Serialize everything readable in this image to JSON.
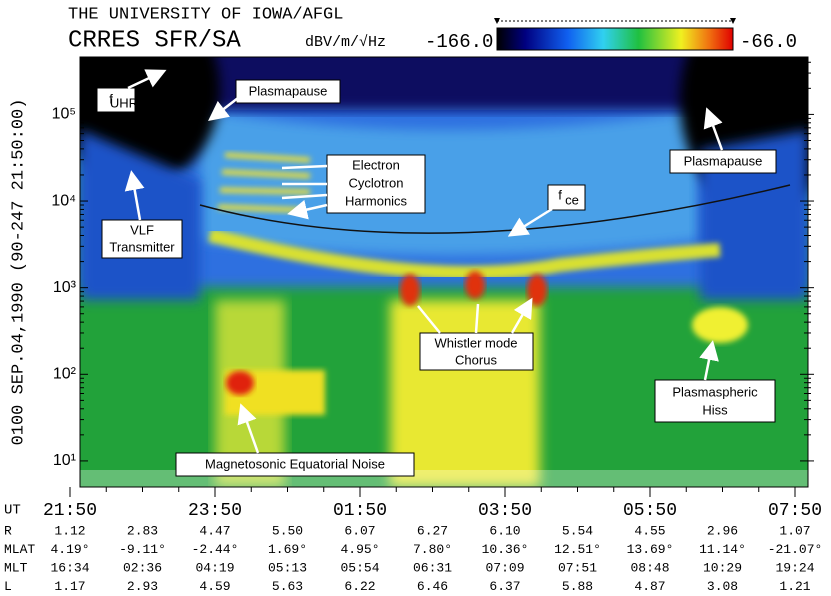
{
  "header": {
    "line1": "THE UNIVERSITY OF IOWA/AFGL",
    "line2": "CRRES SFR/SA",
    "units": "dBV/m/√Hz",
    "color_min": "-166.0",
    "color_max": "-66.0"
  },
  "chart_data": {
    "type": "spectrogram",
    "ylabel": "0100   SEP.04,1990   (90-247 21:50:00)",
    "xlabel": "UT",
    "log_y": true,
    "ylim": [
      5,
      460000
    ],
    "yticks": [
      {
        "value": 10,
        "label": "10¹"
      },
      {
        "value": 100,
        "label": "10²"
      },
      {
        "value": 1000,
        "label": "10³"
      },
      {
        "value": 10000,
        "label": "10⁴"
      },
      {
        "value": 100000,
        "label": "10⁵"
      }
    ],
    "xlim": [
      0,
      10
    ],
    "xticks": [
      {
        "value": 0,
        "label": "21:50"
      },
      {
        "value": 2,
        "label": "23:50"
      },
      {
        "value": 4,
        "label": "01:50"
      },
      {
        "value": 6,
        "label": "03:50"
      },
      {
        "value": 8,
        "label": "05:50"
      },
      {
        "value": 10,
        "label": "07:50"
      }
    ],
    "annotations": [
      {
        "lines": [
          "f"
        ],
        "sub": "UHR"
      },
      {
        "lines": [
          "Plasmapause"
        ]
      },
      {
        "lines": [
          "Electron",
          "Cyclotron",
          "Harmonics"
        ]
      },
      {
        "lines": [
          "f"
        ],
        "sub": "ce"
      },
      {
        "lines": [
          "VLF",
          "Transmitter"
        ]
      },
      {
        "lines": [
          "Plasmapause"
        ]
      },
      {
        "lines": [
          "Whistler mode",
          "Chorus"
        ]
      },
      {
        "lines": [
          "Plasmaspheric",
          "Hiss"
        ]
      },
      {
        "lines": [
          "Magnetosonic Equatorial Noise"
        ]
      }
    ]
  },
  "ephemeris": {
    "rows": [
      {
        "label": "R",
        "values": [
          "1.12",
          "2.83",
          "4.47",
          "5.50",
          "6.07",
          "6.27",
          "6.10",
          "5.54",
          "4.55",
          "2.96",
          "1.07"
        ]
      },
      {
        "label": "MLAT",
        "values": [
          "4.19°",
          "-9.11°",
          "-2.44°",
          "1.69°",
          "4.95°",
          "7.80°",
          "10.36°",
          "12.51°",
          "13.69°",
          "11.14°",
          "-21.07°"
        ]
      },
      {
        "label": "MLT",
        "values": [
          "16:34",
          "02:36",
          "04:19",
          "05:13",
          "05:54",
          "06:31",
          "07:09",
          "07:51",
          "08:48",
          "10:29",
          "19:24"
        ]
      },
      {
        "label": "L",
        "values": [
          "1.17",
          "2.93",
          "4.59",
          "5.63",
          "6.22",
          "6.46",
          "6.37",
          "5.88",
          "4.87",
          "3.08",
          "1.21"
        ]
      }
    ]
  }
}
